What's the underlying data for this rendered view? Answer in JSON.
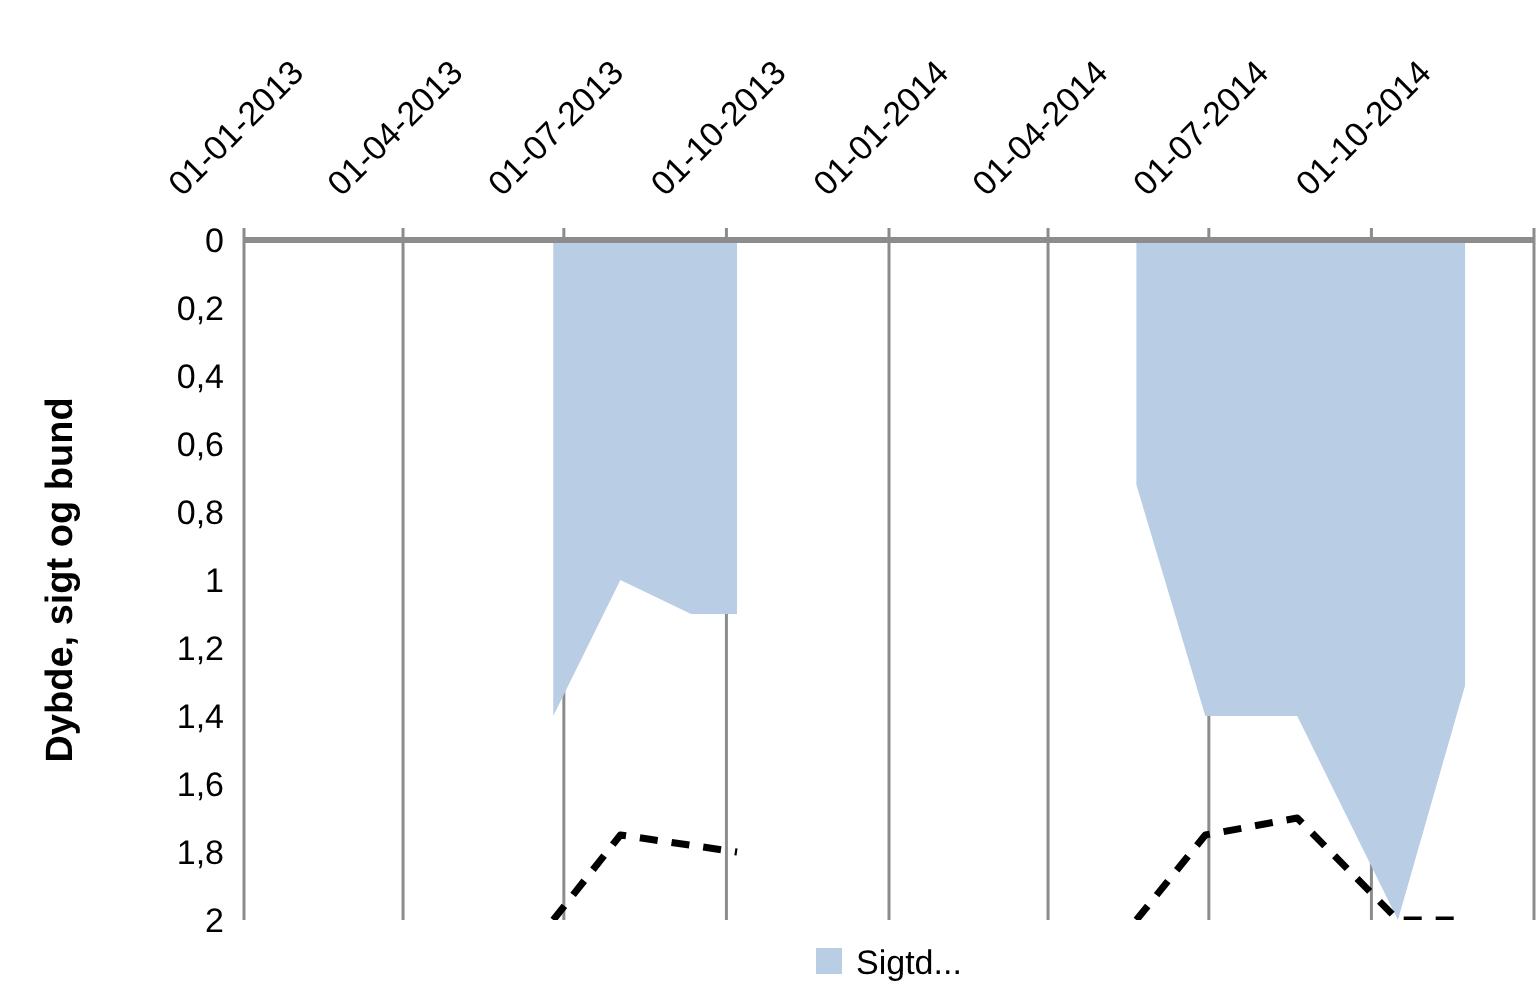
{
  "chart_data": {
    "type": "area",
    "ylabel": "Dybde, sigt og bund",
    "xlim": [
      "2013-01-01",
      "2015-01-01"
    ],
    "xticks": [
      {
        "value": "2013-01-01",
        "label": "01-01-2013"
      },
      {
        "value": "2013-04-01",
        "label": "01-04-2013"
      },
      {
        "value": "2013-07-01",
        "label": "01-07-2013"
      },
      {
        "value": "2013-10-01",
        "label": "01-10-2013"
      },
      {
        "value": "2014-01-01",
        "label": "01-01-2014"
      },
      {
        "value": "2014-04-01",
        "label": "01-04-2014"
      },
      {
        "value": "2014-07-01",
        "label": "01-07-2014"
      },
      {
        "value": "2014-10-01",
        "label": "01-10-2014"
      },
      {
        "value": "2015-01-01",
        "label": null
      }
    ],
    "ylim": [
      2,
      0
    ],
    "yticks": [
      0,
      {
        "value": 0.2,
        "label": "0,2"
      },
      {
        "value": 0.4,
        "label": "0,4"
      },
      {
        "value": 0.6,
        "label": "0,6"
      },
      {
        "value": 0.8,
        "label": "0,8"
      },
      1,
      {
        "value": 1.2,
        "label": "1,2"
      },
      {
        "value": 1.4,
        "label": "1,4"
      },
      {
        "value": 1.6,
        "label": "1,6"
      },
      {
        "value": 1.8,
        "label": "1,8"
      },
      2
    ],
    "grid": "x",
    "legend": "bottom",
    "series": [
      {
        "name": "Sigtd...",
        "color": "#b9cde5",
        "x": [
          "2013-06-25",
          "2013-08-02",
          "2013-09-11",
          "2013-10-07",
          null,
          "2014-05-21",
          "2014-06-29",
          "2014-08-20",
          "2014-10-16",
          "2014-11-23"
        ],
        "values": [
          1.4,
          1.0,
          1.1,
          1.1,
          null,
          0.72,
          1.4,
          1.4,
          2.0,
          1.31
        ]
      },
      {
        "type": "line",
        "color": "#000000",
        "line_style": "dashed",
        "x": [
          "2013-06-25",
          "2013-08-02",
          "2013-10-07",
          null,
          "2014-05-21",
          "2014-06-29",
          "2014-08-20",
          "2014-10-16",
          "2014-11-23"
        ],
        "values": [
          2.0,
          1.75,
          1.8,
          null,
          2.0,
          1.75,
          1.7,
          2.0,
          2.0
        ]
      }
    ]
  }
}
